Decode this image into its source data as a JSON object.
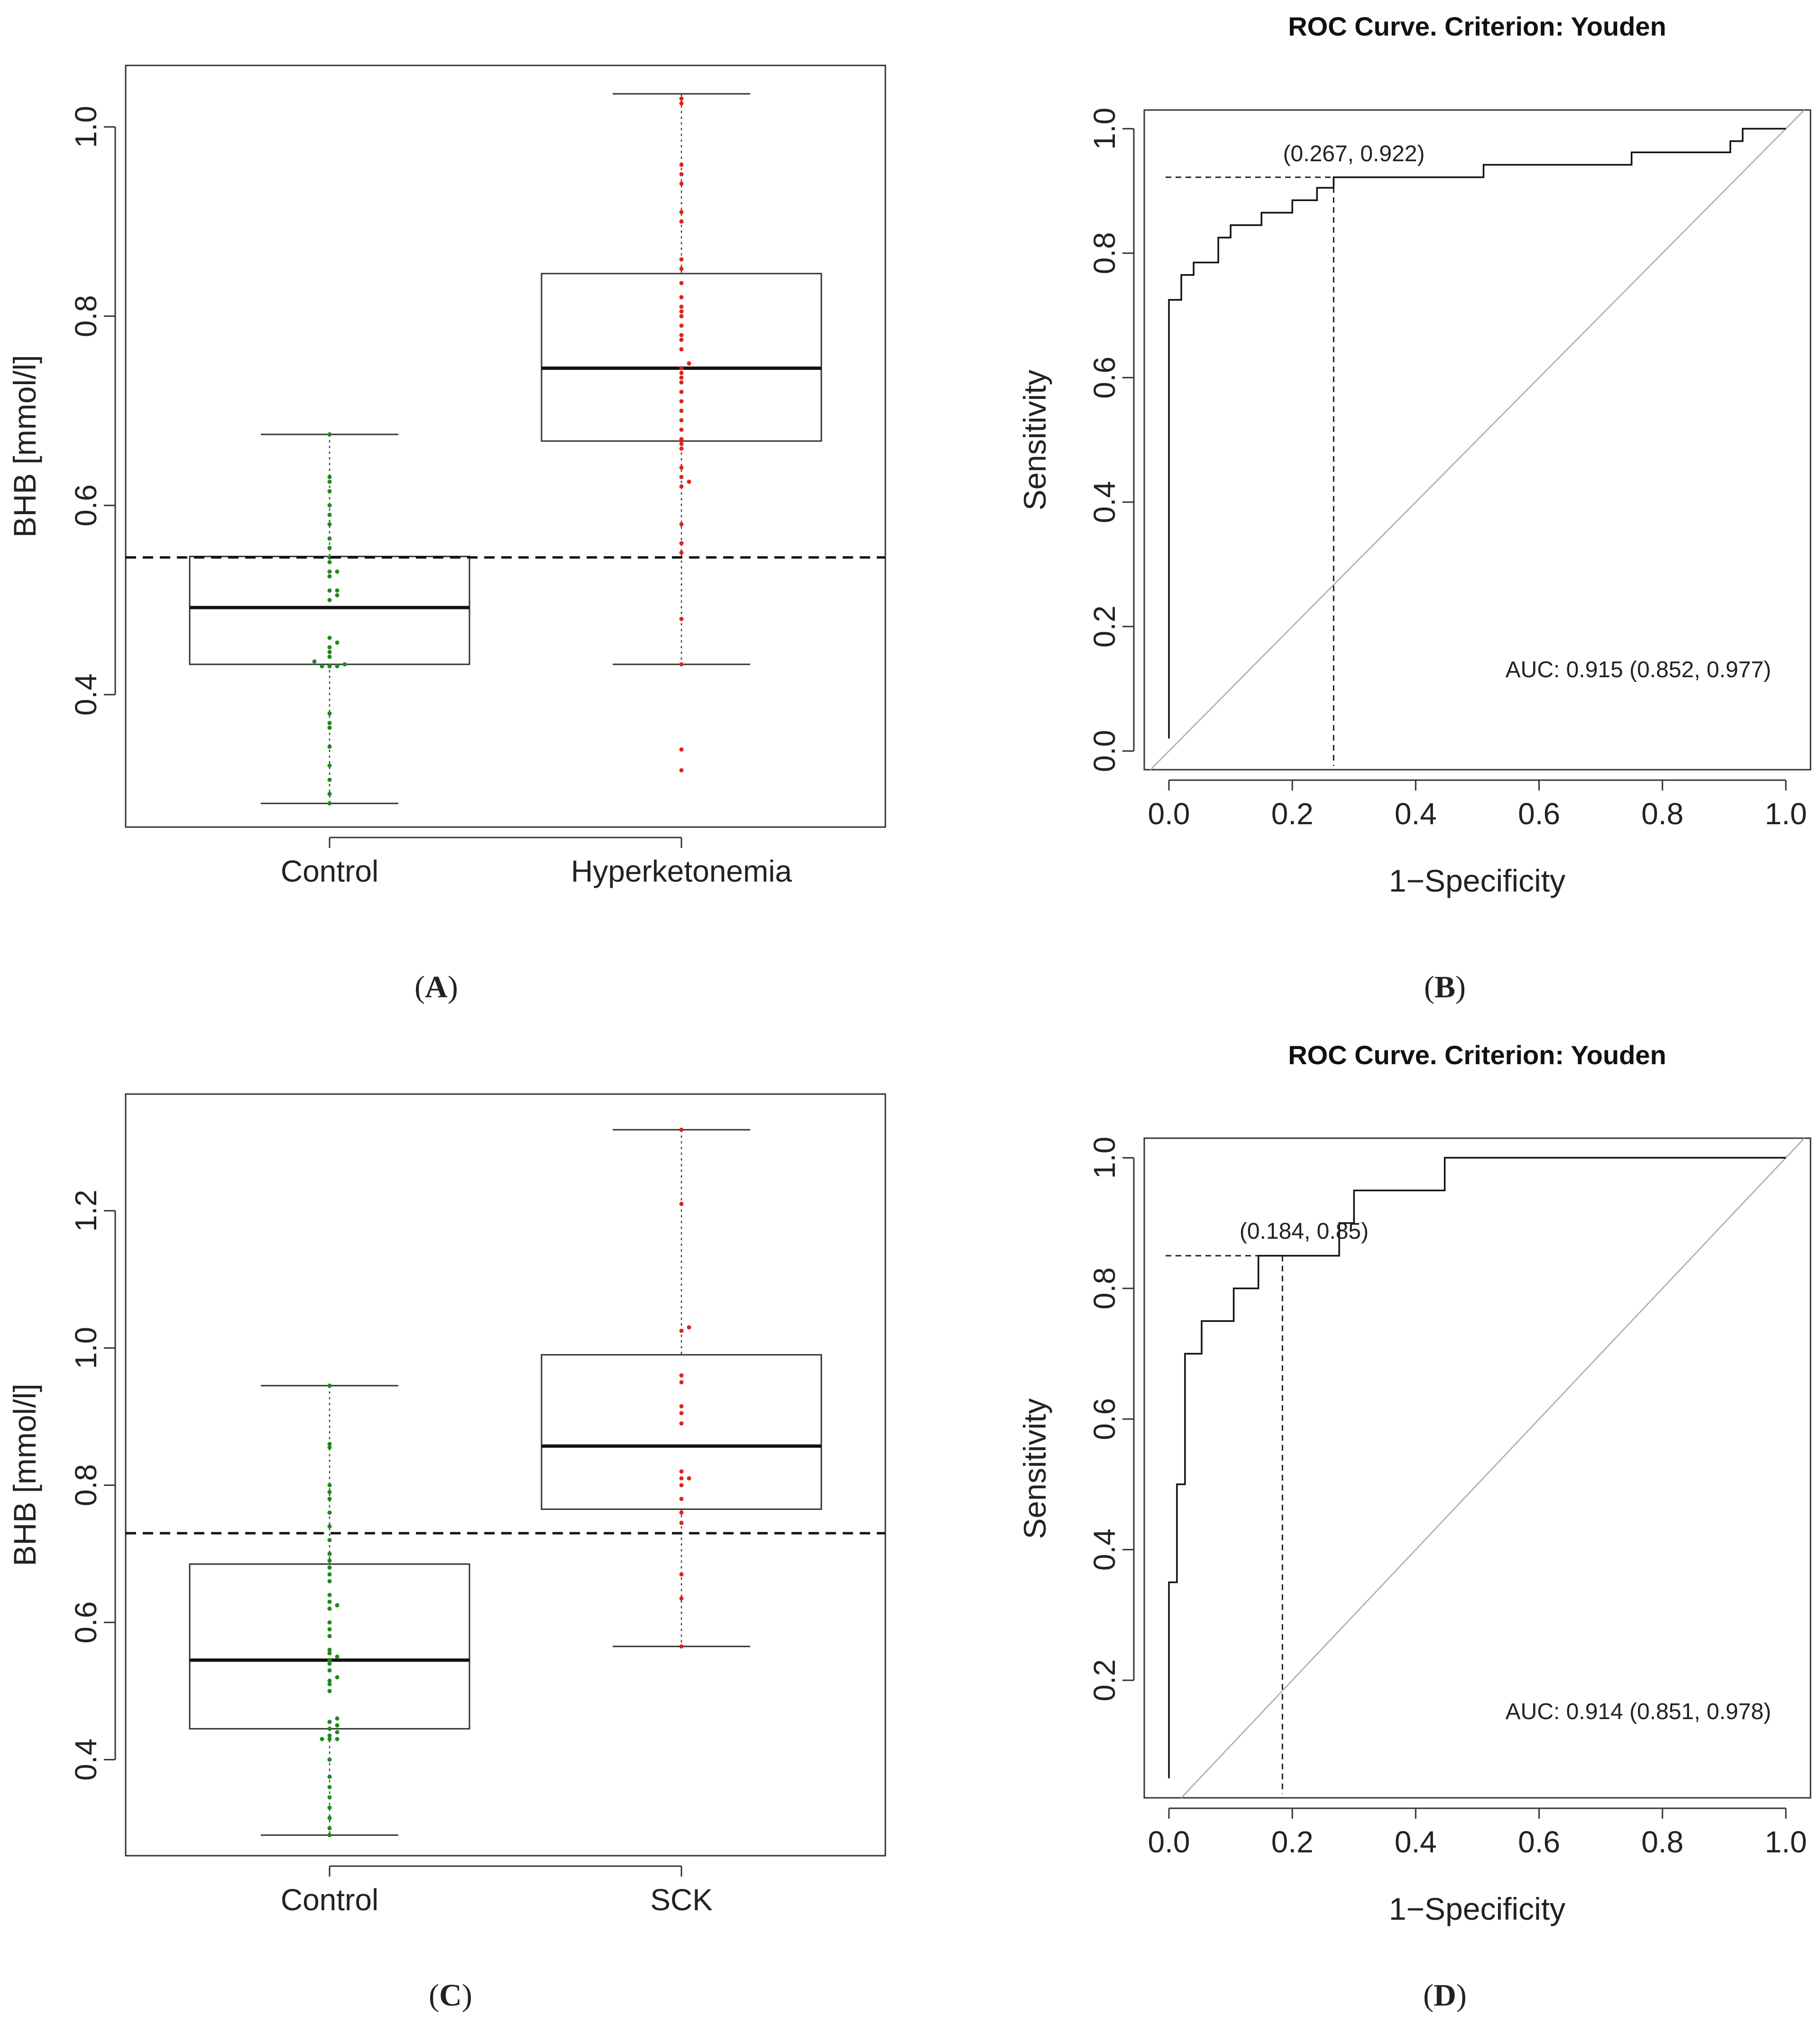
{
  "chart_data": [
    {
      "panel": "A",
      "type": "box",
      "ylabel": "BHB [mmol/l]",
      "ylim": [
        0.26,
        1.065
      ],
      "yticks": [
        0.4,
        0.6,
        0.8,
        1.0
      ],
      "ytick_labels": [
        "0.4",
        "0.6",
        "0.8",
        "1.0"
      ],
      "cutoff": 0.545,
      "groups": [
        {
          "name": "Control",
          "color": "#1f8a1f",
          "min": 0.285,
          "q1": 0.432,
          "median": 0.492,
          "q3": 0.546,
          "max": 0.675,
          "points": [
            0.285,
            0.295,
            0.31,
            0.325,
            0.345,
            0.365,
            0.37,
            0.38,
            0.43,
            0.43,
            0.43,
            0.432,
            0.435,
            0.44,
            0.445,
            0.45,
            0.455,
            0.46,
            0.5,
            0.505,
            0.51,
            0.51,
            0.525,
            0.53,
            0.53,
            0.54,
            0.545,
            0.555,
            0.565,
            0.58,
            0.59,
            0.6,
            0.615,
            0.625,
            0.63,
            0.675
          ]
        },
        {
          "name": "Hyperketonemia",
          "color": "#e0231c",
          "min": 0.432,
          "q1": 0.668,
          "median": 0.745,
          "q3": 0.845,
          "max": 1.035,
          "points": [
            0.32,
            0.342,
            0.432,
            0.48,
            0.55,
            0.56,
            0.58,
            0.62,
            0.625,
            0.63,
            0.64,
            0.66,
            0.665,
            0.67,
            0.68,
            0.69,
            0.7,
            0.71,
            0.72,
            0.73,
            0.735,
            0.74,
            0.745,
            0.75,
            0.765,
            0.775,
            0.78,
            0.79,
            0.8,
            0.805,
            0.81,
            0.82,
            0.835,
            0.85,
            0.86,
            0.9,
            0.91,
            0.94,
            0.95,
            0.96,
            1.025,
            1.03
          ]
        }
      ]
    },
    {
      "panel": "B",
      "type": "line",
      "title": "ROC Curve. Criterion: Youden",
      "xlabel": "1−Specificity",
      "ylabel": "Sensitivity",
      "xlim": [
        -0.04,
        1.04
      ],
      "ylim": [
        -0.03,
        1.03
      ],
      "xticks": [
        0.0,
        0.2,
        0.4,
        0.6,
        0.8,
        1.0
      ],
      "xtick_labels": [
        "0.0",
        "0.2",
        "0.4",
        "0.6",
        "0.8",
        "1.0"
      ],
      "yticks": [
        0.0,
        0.2,
        0.4,
        0.6,
        0.8,
        1.0
      ],
      "ytick_labels": [
        "0.0",
        "0.2",
        "0.4",
        "0.6",
        "0.8",
        "1.0"
      ],
      "roc": {
        "x": [
          0,
          0,
          0.02,
          0.02,
          0.04,
          0.04,
          0.08,
          0.08,
          0.1,
          0.1,
          0.15,
          0.15,
          0.2,
          0.2,
          0.24,
          0.24,
          0.267,
          0.267,
          0.51,
          0.51,
          0.73,
          0.73,
          0.75,
          0.75,
          0.91,
          0.91,
          0.93,
          0.93,
          1.0
        ],
        "y": [
          0.02,
          0.725,
          0.725,
          0.765,
          0.765,
          0.785,
          0.785,
          0.825,
          0.825,
          0.845,
          0.845,
          0.865,
          0.865,
          0.885,
          0.885,
          0.905,
          0.905,
          0.922,
          0.922,
          0.942,
          0.942,
          0.942,
          0.942,
          0.962,
          0.962,
          0.98,
          0.98,
          1.0,
          1.0
        ]
      },
      "optimal_point": [
        0.267,
        0.922
      ],
      "optimal_label": "(0.267, 0.922)",
      "auc_label": "AUC: 0.915 (0.852, 0.977)"
    },
    {
      "panel": "C",
      "type": "box",
      "ylabel": "BHB [mmol/l]",
      "ylim": [
        0.26,
        1.37
      ],
      "yticks": [
        0.4,
        0.6,
        0.8,
        1.0,
        1.2
      ],
      "ytick_labels": [
        "0.4",
        "0.6",
        "0.8",
        "1.0",
        "1.2"
      ],
      "cutoff": 0.73,
      "groups": [
        {
          "name": "Control",
          "color": "#1f8a1f",
          "min": 0.29,
          "q1": 0.445,
          "median": 0.545,
          "q3": 0.685,
          "max": 0.945,
          "points": [
            0.29,
            0.3,
            0.315,
            0.33,
            0.345,
            0.36,
            0.375,
            0.4,
            0.43,
            0.43,
            0.43,
            0.435,
            0.44,
            0.445,
            0.45,
            0.455,
            0.46,
            0.5,
            0.51,
            0.515,
            0.52,
            0.53,
            0.54,
            0.545,
            0.55,
            0.555,
            0.56,
            0.58,
            0.59,
            0.6,
            0.62,
            0.625,
            0.63,
            0.64,
            0.66,
            0.67,
            0.68,
            0.69,
            0.7,
            0.72,
            0.74,
            0.76,
            0.78,
            0.79,
            0.8,
            0.855,
            0.86,
            0.945
          ]
        },
        {
          "name": "SCK",
          "color": "#e0231c",
          "min": 0.565,
          "q1": 0.765,
          "median": 0.857,
          "q3": 0.99,
          "max": 1.318,
          "points": [
            0.565,
            0.635,
            0.67,
            0.745,
            0.76,
            0.78,
            0.8,
            0.81,
            0.81,
            0.82,
            0.89,
            0.905,
            0.915,
            0.95,
            0.96,
            1.025,
            1.03,
            1.21,
            1.318
          ]
        }
      ]
    },
    {
      "panel": "D",
      "type": "line",
      "title": "ROC Curve. Criterion: Youden",
      "xlabel": "1−Specificity",
      "ylabel": "Sensitivity",
      "xlim": [
        -0.04,
        1.04
      ],
      "ylim": [
        0.02,
        1.03
      ],
      "xticks": [
        0.0,
        0.2,
        0.4,
        0.6,
        0.8,
        1.0
      ],
      "xtick_labels": [
        "0.0",
        "0.2",
        "0.4",
        "0.6",
        "0.8",
        "1.0"
      ],
      "yticks": [
        0.2,
        0.4,
        0.6,
        0.8,
        1.0
      ],
      "ytick_labels": [
        "0.2",
        "0.4",
        "0.6",
        "0.8",
        "1.0"
      ],
      "roc": {
        "x": [
          0,
          0,
          0.013,
          0.013,
          0.026,
          0.026,
          0.053,
          0.053,
          0.105,
          0.105,
          0.145,
          0.145,
          0.184,
          0.184,
          0.276,
          0.276,
          0.3,
          0.3,
          0.447,
          0.447,
          1.0
        ],
        "y": [
          0.05,
          0.35,
          0.35,
          0.5,
          0.5,
          0.7,
          0.7,
          0.75,
          0.75,
          0.8,
          0.8,
          0.85,
          0.85,
          0.85,
          0.85,
          0.9,
          0.9,
          0.95,
          0.95,
          1.0,
          1.0
        ]
      },
      "optimal_point": [
        0.184,
        0.85
      ],
      "optimal_label": "(0.184, 0.85)",
      "auc_label": "AUC: 0.914 (0.851, 0.978)"
    }
  ],
  "panels": {
    "A": {
      "open": "(",
      "letter": "A",
      "close": ")"
    },
    "B": {
      "open": "(",
      "letter": "B",
      "close": ")"
    },
    "C": {
      "open": "(",
      "letter": "C",
      "close": ")"
    },
    "D": {
      "open": "(",
      "letter": "D",
      "close": ")"
    }
  }
}
